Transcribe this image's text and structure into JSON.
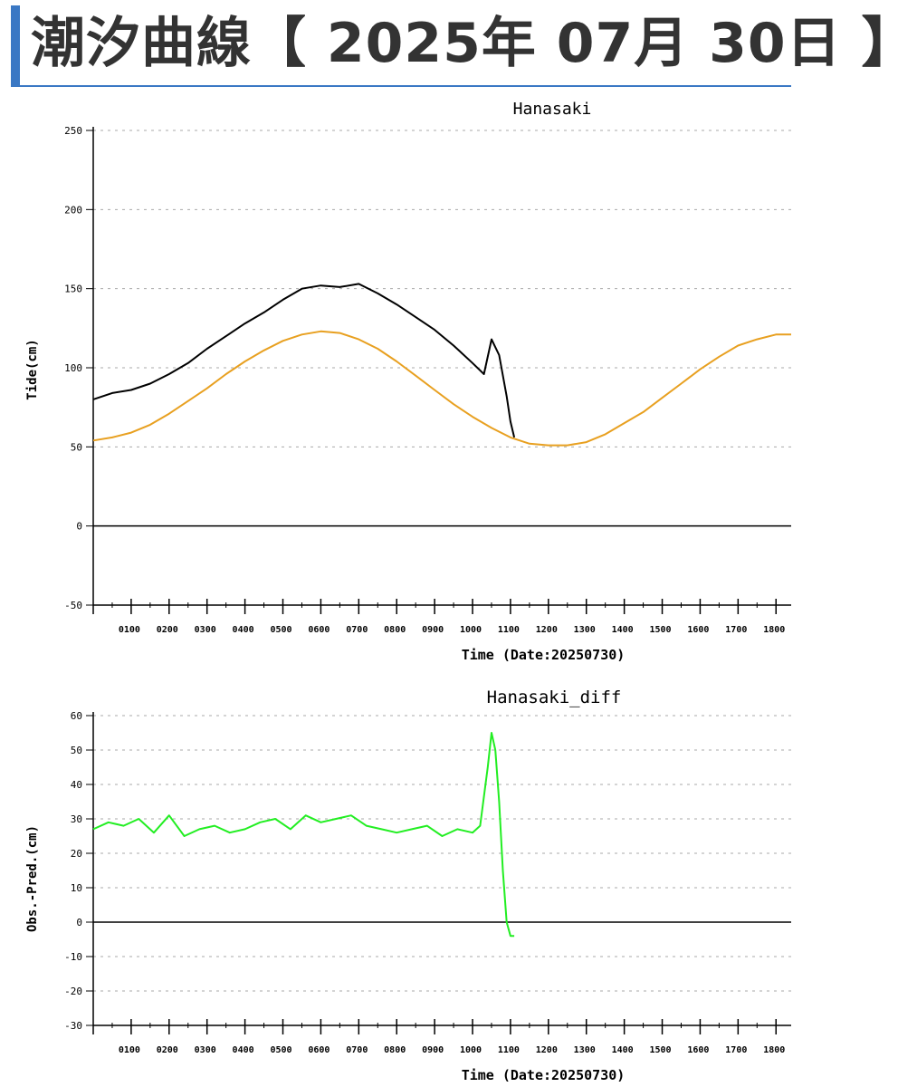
{
  "header": {
    "title": "潮汐曲線【 2025年 07月 30日 】"
  },
  "colors": {
    "observed": "#000000",
    "predicted": "#e8a020",
    "diff": "#22ee22",
    "accent": "#3a78c4"
  },
  "chart_data": [
    {
      "type": "line",
      "title": "Hanasaki",
      "xlabel": "Time (Date:20250730)",
      "ylabel": "Tide(cm)",
      "ylim": [
        -50,
        250
      ],
      "yticks": [
        -50,
        0,
        50,
        100,
        150,
        200,
        250
      ],
      "xlim": [
        0,
        18.4
      ],
      "xtick_labels": [
        "0100",
        "0200",
        "0300",
        "0400",
        "0500",
        "0600",
        "0700",
        "0800",
        "0900",
        "1000",
        "1100",
        "1200",
        "1300",
        "1400",
        "1500",
        "1600",
        "1700",
        "1800"
      ],
      "grid": true,
      "series": [
        {
          "color": "#000000",
          "x": [
            0.0,
            0.5,
            1.0,
            1.5,
            2.0,
            2.5,
            3.0,
            3.5,
            4.0,
            4.5,
            5.0,
            5.5,
            6.0,
            6.5,
            7.0,
            7.5,
            8.0,
            8.5,
            9.0,
            9.5,
            10.0,
            10.3,
            10.5,
            10.7,
            10.9,
            11.0,
            11.1
          ],
          "y": [
            80,
            84,
            86,
            90,
            96,
            103,
            112,
            120,
            128,
            135,
            143,
            150,
            152,
            151,
            153,
            147,
            140,
            132,
            124,
            114,
            103,
            96,
            118,
            108,
            82,
            66,
            56
          ]
        },
        {
          "color": "#e8a020",
          "x": [
            0.0,
            0.5,
            1.0,
            1.5,
            2.0,
            2.5,
            3.0,
            3.5,
            4.0,
            4.5,
            5.0,
            5.5,
            6.0,
            6.5,
            7.0,
            7.5,
            8.0,
            8.5,
            9.0,
            9.5,
            10.0,
            10.5,
            11.0,
            11.5,
            12.0,
            12.5,
            13.0,
            13.5,
            14.0,
            14.5,
            15.0,
            15.5,
            16.0,
            16.5,
            17.0,
            17.5,
            18.0,
            18.4
          ],
          "y": [
            54,
            56,
            59,
            64,
            71,
            79,
            87,
            96,
            104,
            111,
            117,
            121,
            123,
            122,
            118,
            112,
            104,
            95,
            86,
            77,
            69,
            62,
            56,
            52,
            51,
            51,
            53,
            58,
            65,
            72,
            81,
            90,
            99,
            107,
            114,
            118,
            121,
            121
          ]
        }
      ]
    },
    {
      "type": "line",
      "title": "Hanasaki_diff",
      "xlabel": "Time (Date:20250730)",
      "ylabel": "Obs.-Pred.(cm)",
      "ylim": [
        -30,
        60
      ],
      "yticks": [
        -30,
        -20,
        -10,
        0,
        10,
        20,
        30,
        40,
        50,
        60
      ],
      "xlim": [
        0,
        18.4
      ],
      "xtick_labels": [
        "0100",
        "0200",
        "0300",
        "0400",
        "0500",
        "0600",
        "0700",
        "0800",
        "0900",
        "1000",
        "1100",
        "1200",
        "1300",
        "1400",
        "1500",
        "1600",
        "1700",
        "1800"
      ],
      "grid": true,
      "series": [
        {
          "color": "#22ee22",
          "x": [
            0.0,
            0.4,
            0.8,
            1.2,
            1.6,
            2.0,
            2.4,
            2.8,
            3.2,
            3.6,
            4.0,
            4.4,
            4.8,
            5.2,
            5.6,
            6.0,
            6.4,
            6.8,
            7.2,
            7.6,
            8.0,
            8.4,
            8.8,
            9.2,
            9.6,
            10.0,
            10.2,
            10.4,
            10.5,
            10.6,
            10.7,
            10.8,
            10.9,
            11.0,
            11.1
          ],
          "y": [
            27,
            29,
            28,
            30,
            26,
            31,
            25,
            27,
            28,
            26,
            27,
            29,
            30,
            27,
            31,
            29,
            30,
            31,
            28,
            27,
            26,
            27,
            28,
            25,
            27,
            26,
            28,
            45,
            55,
            50,
            35,
            15,
            0,
            -4,
            -4
          ]
        }
      ]
    }
  ]
}
